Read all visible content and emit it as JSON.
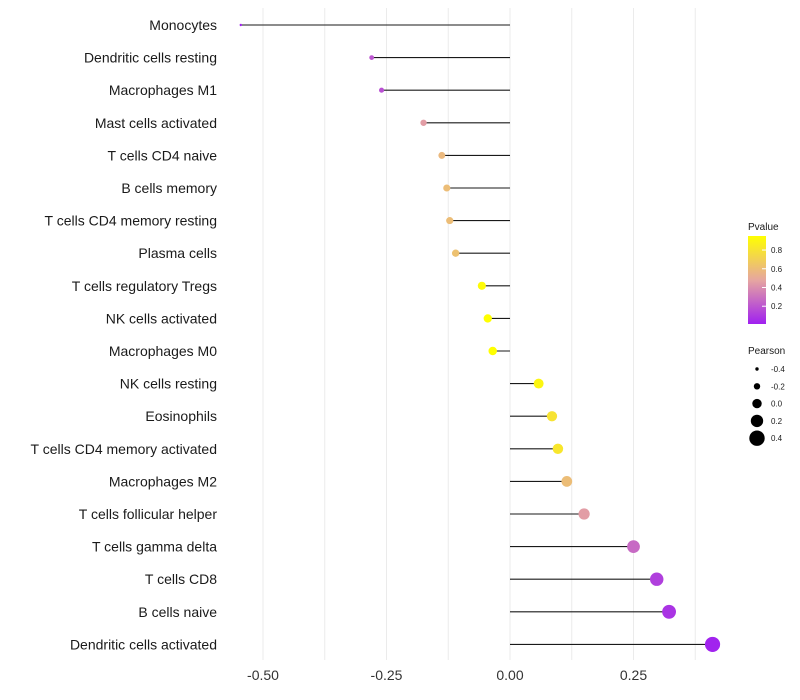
{
  "chart_data": {
    "type": "lollipop",
    "title": "",
    "xlabel": "",
    "ylabel": "",
    "xlim": [
      -0.6,
      0.42
    ],
    "x_ticks": [
      -0.5,
      -0.25,
      0.0,
      0.25
    ],
    "x_tick_labels": [
      "-0.50",
      "-0.25",
      "0.00",
      "0.25"
    ],
    "categories": [
      "Monocytes",
      "Dendritic cells resting",
      "Macrophages M1",
      "Mast cells activated",
      "T cells CD4 naive",
      "B cells memory",
      "T cells CD4 memory resting",
      "Plasma cells",
      "T cells regulatory  Tregs ",
      "NK cells activated",
      "Macrophages M0",
      "NK cells resting",
      "Eosinophils",
      "T cells CD4 memory activated",
      "Macrophages M2",
      "T cells follicular helper",
      "T cells gamma delta",
      "T cells CD8",
      "B cells naive",
      "Dendritic cells activated"
    ],
    "pearson": [
      -0.545,
      -0.28,
      -0.26,
      -0.175,
      -0.138,
      -0.128,
      -0.122,
      -0.11,
      -0.057,
      -0.045,
      -0.035,
      0.058,
      0.085,
      0.097,
      0.115,
      0.15,
      0.25,
      0.297,
      0.322,
      0.41
    ],
    "pvalue": [
      0.01,
      0.2,
      0.18,
      0.45,
      0.58,
      0.6,
      0.6,
      0.62,
      0.93,
      0.95,
      0.95,
      0.9,
      0.8,
      0.82,
      0.6,
      0.45,
      0.27,
      0.12,
      0.08,
      0.02
    ],
    "legend_color": {
      "title": "Pvalue",
      "ticks": [
        "0.8",
        "0.6",
        "0.4",
        "0.2"
      ],
      "tick_values": [
        0.8,
        0.6,
        0.4,
        0.2
      ],
      "range": [
        0.01,
        0.95
      ],
      "low_color": "#a020f0",
      "mid_color": "#e6a6a0",
      "high_color": "#ffff00"
    },
    "legend_size": {
      "title": "Pearson",
      "labels": [
        "-0.4",
        "-0.2",
        "0.0",
        "0.2",
        "0.4"
      ],
      "values": [
        -0.4,
        -0.2,
        0.0,
        0.2,
        0.4
      ]
    },
    "legend_position": "right"
  }
}
